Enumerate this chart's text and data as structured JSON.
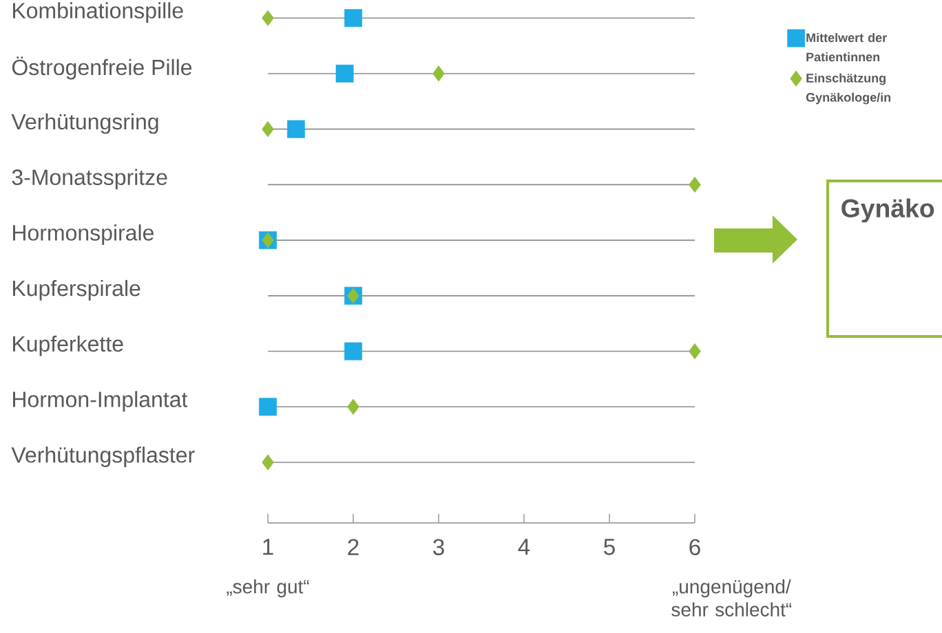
{
  "chart_data": {
    "type": "scatter",
    "orientation": "horizontal",
    "categories": [
      "Kombinationspille",
      "Östrogenfreie Pille",
      "Verhütungsring",
      "3-Monatsspritze",
      "Hormonspirale",
      "Kupferspirale",
      "Kupferkette",
      "Hormon-Implantat",
      "Verhütungspflaster"
    ],
    "series": [
      {
        "name": "Mittelwert der Patientinnen",
        "color": "#1eabe6",
        "marker": "square",
        "values": [
          2.0,
          1.9,
          1.33,
          null,
          1.0,
          2.0,
          2.0,
          1.0,
          null
        ]
      },
      {
        "name": "Einschätzung Gynäkologe/in",
        "color": "#92be38",
        "marker": "diamond",
        "values": [
          1,
          3,
          1,
          6,
          1,
          2,
          6,
          2,
          1
        ]
      }
    ],
    "xlim": [
      1,
      6
    ],
    "xticks": [
      1,
      2,
      3,
      4,
      5,
      6
    ],
    "grid": "y",
    "legend": "top right",
    "annotations": [
      "„sehr gut“",
      "„ungenügend/ sehr schlecht“",
      "Gynäko"
    ]
  }
}
